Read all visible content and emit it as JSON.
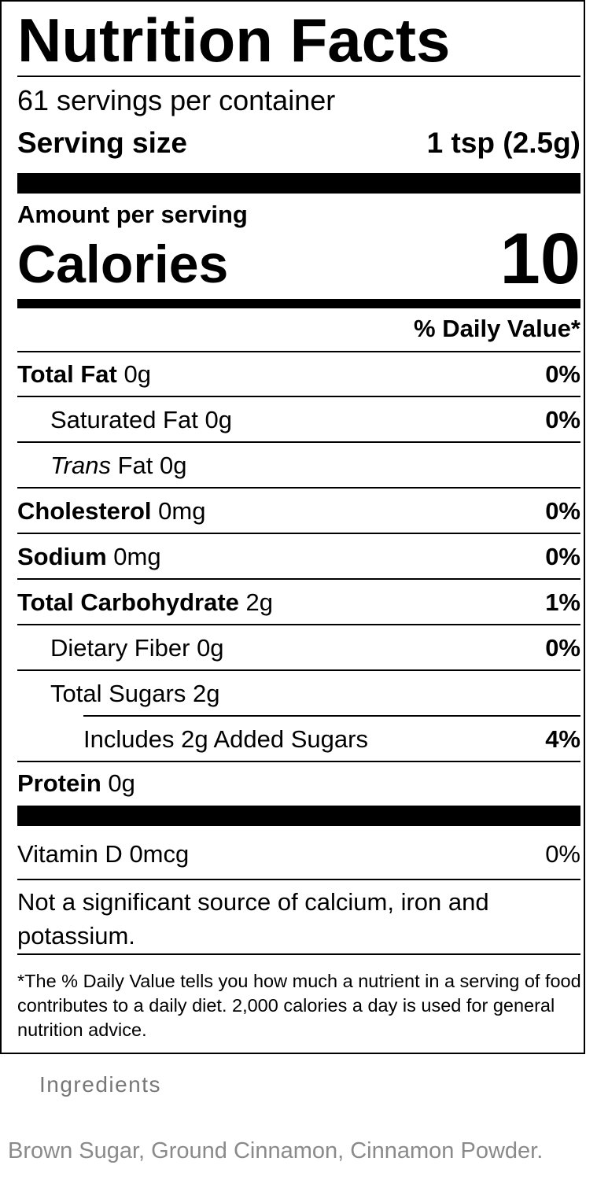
{
  "header": {
    "title": "Nutrition Facts",
    "servings": "61 servings per container",
    "serving_size_label": "Serving size",
    "serving_size_value": "1 tsp (2.5g)"
  },
  "calories": {
    "amount_label": "Amount per serving",
    "label": "Calories",
    "value": 10
  },
  "daily_value_header": "% Daily Value*",
  "nutrients": [
    {
      "name": "Total Fat",
      "amount": "0g",
      "dv": "0%"
    },
    {
      "name": "Saturated Fat",
      "amount": "0g",
      "dv": "0%"
    },
    {
      "name": [
        "Trans",
        "Fat"
      ],
      "amount": "0g"
    },
    {
      "name": "Cholesterol",
      "amount": "0mg",
      "dv": "0%"
    },
    {
      "name": "Sodium",
      "amount": "0mg",
      "dv": "0%"
    },
    {
      "name": "Total Carbohydrate",
      "amount": "2g",
      "dv": "1%"
    },
    {
      "name": "Dietary Fiber",
      "amount": "0g",
      "dv": "0%"
    },
    {
      "name": "Total Sugars",
      "amount": "2g"
    },
    {
      "name": [
        "Includes",
        "Added Sugars"
      ],
      "amount": "2g",
      "dv": "4%"
    },
    {
      "name": "Protein",
      "amount": "0g"
    }
  ],
  "vitamins": [
    {
      "name": "Vitamin D",
      "amount": "0mcg",
      "dv": "0%"
    }
  ],
  "note": "Not a significant source of calcium, iron and potassium.",
  "footnote": "*The % Daily Value tells you how much a nutrient in a serving of food contributes to a daily diet. 2,000 calories a day is used for general nutrition advice.",
  "ingredients": {
    "title": "Ingredients",
    "text": "Brown Sugar, Ground Cinnamon, Cinnamon Powder."
  }
}
